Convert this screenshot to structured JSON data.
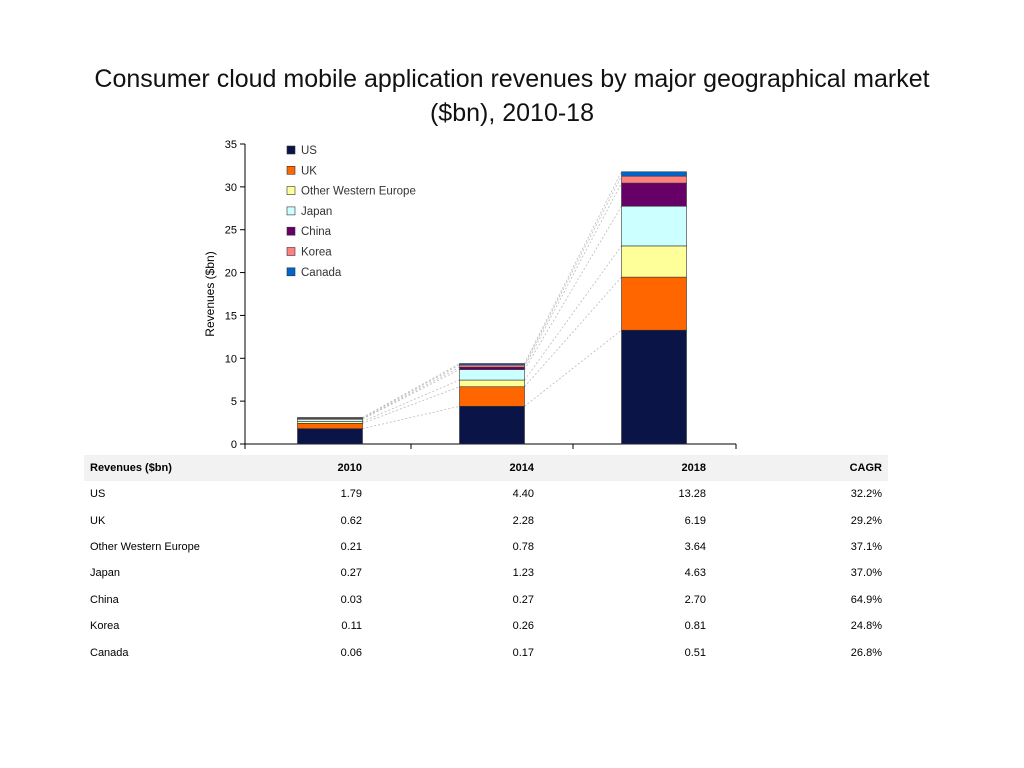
{
  "page": {
    "title_line1": "Consumer cloud mobile application revenues by major geographical market",
    "title_line2": "($bn), 2010-18"
  },
  "chart_data": {
    "type": "bar",
    "stacked": true,
    "categories": [
      "2010",
      "2014",
      "2018"
    ],
    "ylabel": "Revenues ($bn)",
    "ylim": [
      0,
      35
    ],
    "yticks": [
      0,
      5,
      10,
      15,
      20,
      25,
      30,
      35
    ],
    "legend_position": "top-left",
    "connector_lines": true,
    "series": [
      {
        "name": "US",
        "color": "#0a1446",
        "values": [
          1.79,
          4.4,
          13.28
        ]
      },
      {
        "name": "UK",
        "color": "#ff6600",
        "values": [
          0.62,
          2.28,
          6.19
        ]
      },
      {
        "name": "Other Western Europe",
        "color": "#ffff99",
        "values": [
          0.21,
          0.78,
          3.64
        ]
      },
      {
        "name": "Japan",
        "color": "#ccffff",
        "values": [
          0.27,
          1.23,
          4.63
        ]
      },
      {
        "name": "China",
        "color": "#660066",
        "values": [
          0.03,
          0.27,
          2.7
        ]
      },
      {
        "name": "Korea",
        "color": "#ff8080",
        "values": [
          0.11,
          0.26,
          0.81
        ]
      },
      {
        "name": "Canada",
        "color": "#0066cc",
        "values": [
          0.06,
          0.17,
          0.51
        ]
      }
    ]
  },
  "table": {
    "headers": [
      "Revenues ($bn)",
      "2010",
      "2014",
      "2018",
      "CAGR"
    ],
    "rows": [
      [
        "US",
        "1.79",
        "4.40",
        "13.28",
        "32.2%"
      ],
      [
        "UK",
        "0.62",
        "2.28",
        "6.19",
        "29.2%"
      ],
      [
        "Other Western Europe",
        "0.21",
        "0.78",
        "3.64",
        "37.1%"
      ],
      [
        "Japan",
        "0.27",
        "1.23",
        "4.63",
        "37.0%"
      ],
      [
        "China",
        "0.03",
        "0.27",
        "2.70",
        "64.9%"
      ],
      [
        "Korea",
        "0.11",
        "0.26",
        "0.81",
        "24.8%"
      ],
      [
        "Canada",
        "0.06",
        "0.17",
        "0.51",
        "26.8%"
      ]
    ]
  }
}
